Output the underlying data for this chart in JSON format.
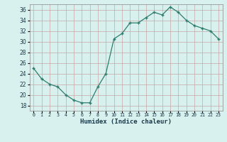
{
  "x": [
    0,
    1,
    2,
    3,
    4,
    5,
    6,
    7,
    8,
    9,
    10,
    11,
    12,
    13,
    14,
    15,
    16,
    17,
    18,
    19,
    20,
    21,
    22,
    23
  ],
  "y": [
    25,
    23,
    22,
    21.5,
    20,
    19,
    18.5,
    18.5,
    21.5,
    24,
    30.5,
    31.5,
    33.5,
    33.5,
    34.5,
    35.5,
    35,
    36.5,
    35.5,
    34,
    33,
    32.5,
    32,
    30.5
  ],
  "line_color": "#2d7d6e",
  "marker_color": "#2d7d6e",
  "bg_color": "#d8f0ee",
  "grid_color": "#c8a8a8",
  "xlabel": "Humidex (Indice chaleur)",
  "ylim": [
    17,
    37
  ],
  "xlim": [
    -0.5,
    23.5
  ],
  "yticks": [
    18,
    20,
    22,
    24,
    26,
    28,
    30,
    32,
    34,
    36
  ],
  "xtick_labels": [
    "0",
    "1",
    "2",
    "3",
    "4",
    "5",
    "6",
    "7",
    "8",
    "9",
    "10",
    "11",
    "12",
    "13",
    "14",
    "15",
    "16",
    "17",
    "18",
    "19",
    "20",
    "21",
    "22",
    "23"
  ],
  "xlabel_fontsize": 6.5,
  "ytick_fontsize": 5.5,
  "xtick_fontsize": 4.8
}
